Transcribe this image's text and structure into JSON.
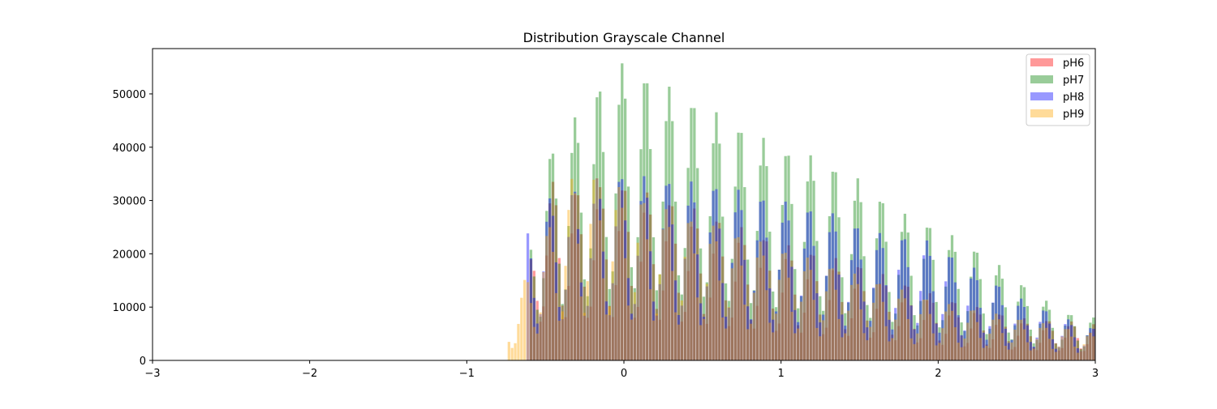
{
  "chart_data": {
    "type": "bar",
    "title": "Distribution Grayscale Channel",
    "xlabel": "",
    "ylabel": "",
    "xlim": [
      -3,
      3
    ],
    "ylim": [
      0,
      58500
    ],
    "x_ticks": [
      -3,
      -2,
      -1,
      0,
      1,
      2,
      3
    ],
    "x_tick_labels": [
      "−3",
      "−2",
      "−1",
      "0",
      "1",
      "2",
      "3"
    ],
    "y_ticks": [
      0,
      10000,
      20000,
      30000,
      40000,
      50000
    ],
    "y_tick_labels": [
      "0",
      "10000",
      "20000",
      "30000",
      "40000",
      "50000"
    ],
    "grid": false,
    "legend_position": "top-right",
    "bin_width": 0.02,
    "oscillation_period": 0.15,
    "series": [
      {
        "name": "pH6",
        "color": "#ff0000",
        "opacity": 0.4,
        "x_range": [
          -0.6,
          3.0
        ],
        "envelope": [
          [
            -0.6,
            18000
          ],
          [
            -0.5,
            34000
          ],
          [
            -0.3,
            32000
          ],
          [
            0.0,
            33000
          ],
          [
            0.3,
            30000
          ],
          [
            0.5,
            28000
          ],
          [
            1.0,
            22000
          ],
          [
            1.5,
            18000
          ],
          [
            2.0,
            12000
          ],
          [
            2.5,
            8000
          ],
          [
            3.0,
            7000
          ]
        ]
      },
      {
        "name": "pH7",
        "color": "#008000",
        "opacity": 0.4,
        "x_range": [
          -0.6,
          3.0
        ],
        "envelope": [
          [
            -0.6,
            22000
          ],
          [
            -0.5,
            38000
          ],
          [
            -0.3,
            46000
          ],
          [
            -0.15,
            52000
          ],
          [
            0.0,
            56000
          ],
          [
            0.25,
            52000
          ],
          [
            0.5,
            48000
          ],
          [
            0.75,
            44000
          ],
          [
            1.0,
            40000
          ],
          [
            1.25,
            38000
          ],
          [
            1.5,
            34000
          ],
          [
            1.75,
            28000
          ],
          [
            2.0,
            25000
          ],
          [
            2.3,
            20000
          ],
          [
            2.6,
            13000
          ],
          [
            2.8,
            9000
          ],
          [
            3.0,
            8000
          ]
        ]
      },
      {
        "name": "pH8",
        "color": "#0000ff",
        "opacity": 0.4,
        "x_range": [
          -0.62,
          3.0
        ],
        "envelope": [
          [
            -0.62,
            24000
          ],
          [
            -0.5,
            30000
          ],
          [
            -0.2,
            34000
          ],
          [
            0.0,
            35000
          ],
          [
            0.3,
            34000
          ],
          [
            0.6,
            33000
          ],
          [
            1.0,
            30000
          ],
          [
            1.3,
            28000
          ],
          [
            1.6,
            24000
          ],
          [
            1.9,
            23000
          ],
          [
            2.2,
            18000
          ],
          [
            2.5,
            12000
          ],
          [
            2.8,
            8000
          ],
          [
            3.0,
            6000
          ]
        ]
      },
      {
        "name": "pH9",
        "color": "#ffa500",
        "opacity": 0.4,
        "x_range": [
          -0.74,
          3.0
        ],
        "envelope": [
          [
            -0.74,
            7000
          ],
          [
            -0.66,
            13000
          ],
          [
            -0.56,
            20000
          ],
          [
            -0.4,
            30000
          ],
          [
            -0.28,
            37000
          ],
          [
            0.0,
            32000
          ],
          [
            0.3,
            28000
          ],
          [
            0.6,
            25000
          ],
          [
            1.0,
            21000
          ],
          [
            1.5,
            16000
          ],
          [
            2.0,
            11000
          ],
          [
            2.5,
            8000
          ],
          [
            3.0,
            5000
          ]
        ]
      }
    ]
  }
}
